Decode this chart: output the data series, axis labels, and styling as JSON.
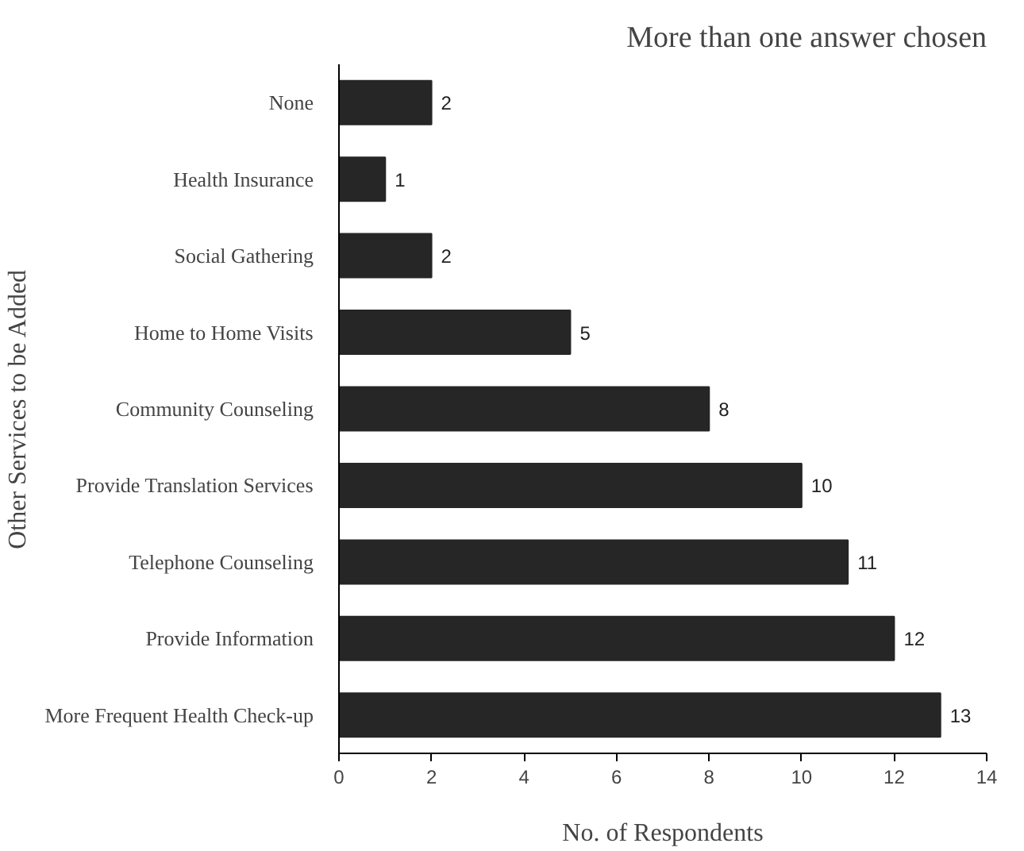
{
  "chart_data": {
    "type": "bar",
    "orientation": "horizontal",
    "title": "More than one answer chosen",
    "xlabel": "No. of Respondents",
    "ylabel": "Other Services to be Added",
    "categories": [
      "None",
      "Health Insurance",
      "Social Gathering",
      "Home to Home Visits",
      "Community Counseling",
      "Provide Translation Services",
      "Telephone Counseling",
      "Provide Information",
      "More Frequent Health Check-up"
    ],
    "values": [
      2,
      1,
      2,
      5,
      8,
      10,
      11,
      12,
      13
    ],
    "color": "#262626",
    "data_labels": true,
    "xlim": [
      0,
      14
    ],
    "xticks": [
      0,
      2,
      4,
      6,
      8,
      10,
      12,
      14
    ],
    "grid": false
  }
}
